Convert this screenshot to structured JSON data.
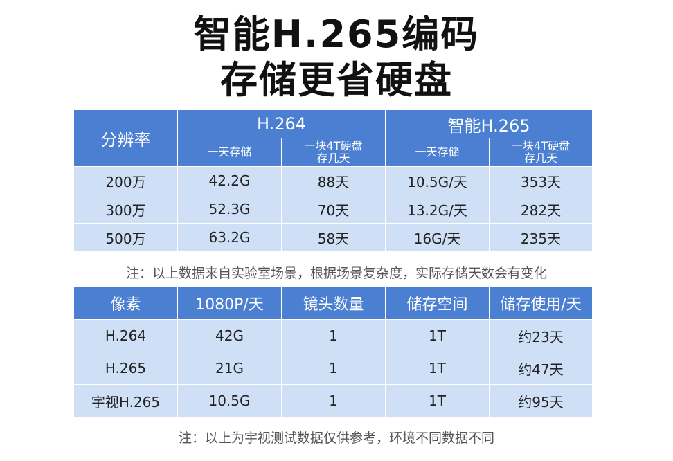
{
  "title": {
    "line1": "智能H.265编码",
    "line2": "存储更省硬盘"
  },
  "table1": {
    "header_resolution": "分辨率",
    "group_h264": "H.264",
    "group_smart_h265": "智能H.265",
    "sub_daily": "一天存储",
    "sub_days_line1": "一块4T硬盘",
    "sub_days_line2": "存几天",
    "rows": [
      {
        "res": "200万",
        "h264_daily": "42.2G",
        "h264_days": "88天",
        "h265_daily": "10.5G/天",
        "h265_days": "353天"
      },
      {
        "res": "300万",
        "h264_daily": "52.3G",
        "h264_days": "70天",
        "h265_daily": "13.2G/天",
        "h265_days": "282天"
      },
      {
        "res": "500万",
        "h264_daily": "63.2G",
        "h264_days": "58天",
        "h265_daily": "16G/天",
        "h265_days": "235天"
      }
    ]
  },
  "note1": "注：以上数据来自实验室场景，根据场景复杂度，实际存储天数会有变化",
  "table2": {
    "headers": [
      "像素",
      "1080P/天",
      "镜头数量",
      "储存空间",
      "储存使用/天"
    ],
    "rows": [
      [
        "H.264",
        "42G",
        "1",
        "1T",
        "约23天"
      ],
      [
        "H.265",
        "21G",
        "1",
        "1T",
        "约47天"
      ],
      [
        "宇视H.265",
        "10.5G",
        "1",
        "1T",
        "约95天"
      ]
    ]
  },
  "note2": "注：以上为宇视测试数据仅供参考，环境不同数据不同"
}
